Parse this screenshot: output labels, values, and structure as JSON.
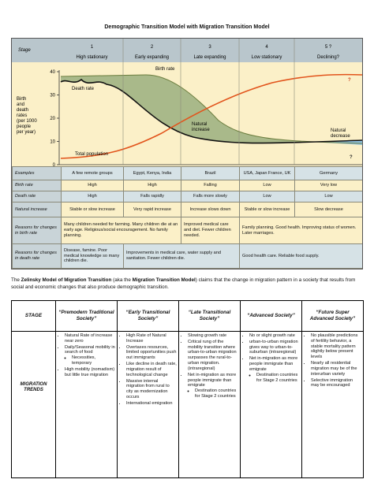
{
  "title": "Demographic Transition Model with Migration Transition Model",
  "dtm": {
    "stage_label": "Stage",
    "stages": [
      {
        "number": "1",
        "name": "High stationary"
      },
      {
        "number": "2",
        "name": "Early expanding"
      },
      {
        "number": "3",
        "name": "Late expanding"
      },
      {
        "number": "4",
        "name": "Low stationary"
      },
      {
        "number": "5 ?",
        "name": "Declining?"
      }
    ],
    "y_axis_label": [
      "Birth",
      "and",
      "death",
      "rates",
      "(per 1000",
      "people",
      "per year)"
    ],
    "y_ticks": [
      "40",
      "30",
      "20",
      "10",
      "0"
    ],
    "curve_labels": {
      "birth_rate": "Birth rate",
      "death_rate": "Death rate",
      "natural_increase": [
        "Natural",
        "increase"
      ],
      "total_population": "Total population",
      "natural_decrease": [
        "Natural",
        "decrease"
      ],
      "question_marks": [
        "?",
        "?"
      ]
    },
    "rows": [
      {
        "label": "Examples",
        "cells": [
          "A few remote groups",
          "Egypt, Kenya, India",
          "Brazil",
          "USA, Japan France, UK",
          "Germany"
        ]
      },
      {
        "label": "Birth rate",
        "cells": [
          "High",
          "High",
          "Falling",
          "Low",
          "Very low"
        ]
      },
      {
        "label": "Death rate",
        "cells": [
          "High",
          "Falls rapidly",
          "Falls more slowly",
          "Low",
          "Low"
        ]
      },
      {
        "label": "Natural increase",
        "cells": [
          "Stable or slow increase",
          "Very rapid increase",
          "Increase slows down",
          "Stable or slow increase",
          "Slow decrease"
        ]
      },
      {
        "label": "Reasons for changes in birth rate",
        "cells": [
          "Many children needed for farming. Many children die at an early age. Religious/social encouragement. No family planning.",
          "Improved medical care and diet. Fewer children needed.",
          "Family planning. Good health. Improving status of women. Later marriages."
        ]
      },
      {
        "label": "Reasons for changes in death rate",
        "cells": [
          "Disease, famine. Poor medical knowledge so many children die.",
          "Improvements in medical care, water supply and sanitation. Fewer children die.",
          "Good health care. Reliable food supply."
        ]
      }
    ]
  },
  "intro": [
    {
      "text": "The "
    },
    {
      "text": "Zelinsky Model of Migration Transition",
      "bold": true
    },
    {
      "text": " (aka the "
    },
    {
      "text": "Migration Transition Model",
      "bold": true
    },
    {
      "text": ") claims that the change in migration pattern in a society that results from social and economic changes that also produce demographic transition."
    }
  ],
  "table": {
    "stage_header": "STAGE",
    "row_label": "MIGRATION TRENDS",
    "columns": [
      {
        "header": "“Premodern Traditional Society”",
        "items": [
          {
            "text": "Natural Rate of increase near zero"
          },
          {
            "text": "Daily/Seasonal mobility in search of food",
            "sub": [
              "Necessities, temporary"
            ]
          },
          {
            "text": "High mobility (nomadism) but little true migration"
          }
        ]
      },
      {
        "header": "“Early Transitional Society”",
        "items": [
          {
            "text": "High Rate of Natural Increase"
          },
          {
            "text": "Overtaxes resources, limited opportunities push out immigrants"
          },
          {
            "text": "Like decline in death rate, migration result of technological change"
          },
          {
            "text": "Massive internal migration from rural to city as modernization occurs"
          },
          {
            "text": "International emigration"
          }
        ]
      },
      {
        "header": "“Late Transitional Society”",
        "items": [
          {
            "text": "Slowing growth rate"
          },
          {
            "text": "Critical rung of the mobility transition where urban-to-urban migration surpasses the rural-to-urban migration. (intraregional)"
          },
          {
            "text": "Net in-migration as more people immigrate than emigrate",
            "sub": [
              "Destination countries for Stage 2 countries"
            ]
          }
        ]
      },
      {
        "header": "“Advanced Society”",
        "items": [
          {
            "text": "No or slight growth rate"
          },
          {
            "text": "urban-to-urban migration gives way to urban-to-suburban (intraregional)"
          },
          {
            "text": "Net in-migration as more people immigrate than emigrate",
            "sub": [
              "Destination countries for Stage 2 countries"
            ]
          }
        ]
      },
      {
        "header": "“Future Super Advanced Society”",
        "items": [
          {
            "text": "No plausible predictions of fertility behavior, a stable mortality pattern slightly below present levels"
          },
          {
            "text": "Nearly all residential migration may be of the interurban variety"
          },
          {
            "text": "Selective immigration may be encouraged"
          }
        ]
      }
    ]
  }
}
